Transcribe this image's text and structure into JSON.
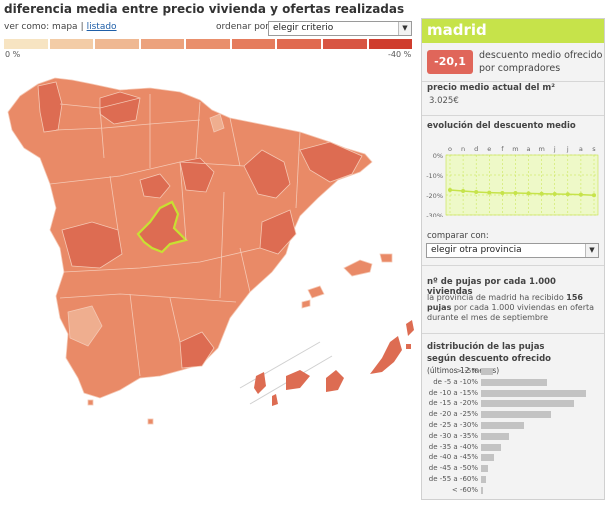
{
  "page": {
    "title": "diferencia media entre precio vivienda y ofertas realizadas"
  },
  "view": {
    "label": "ver como: mapa",
    "separator": "|",
    "list_link": "listado",
    "order_label": "ordenar por:",
    "order_value": "elegir criterio"
  },
  "scale": {
    "min_label": "0 %",
    "max_label": "-40 %",
    "colors": [
      "#f7e4c2",
      "#f3cca6",
      "#efb892",
      "#eca27d",
      "#e98f6c",
      "#e57c5d",
      "#e06a50",
      "#d85543",
      "#cf3d2e"
    ]
  },
  "map": {
    "land_color": "#e98a67",
    "dark_color": "#dd6c52",
    "light_color": "#efae8f",
    "border_color": "#f5c8b4",
    "highlight_color": "#c8e032",
    "selected": "madrid"
  },
  "panel": {
    "province": "madrid",
    "discount_value": "-20,1 %",
    "discount_label": "descuento medio ofrecido por compradores",
    "price_label": "precio medio actual del m²",
    "price_value": "3.025€",
    "evolution_label": "evolución del descuento medio",
    "months": [
      "o",
      "n",
      "d",
      "e",
      "f",
      "m",
      "a",
      "m",
      "j",
      "j",
      "a",
      "s"
    ],
    "y_ticks": [
      "0%",
      "-10%",
      "-20%",
      "-30%"
    ],
    "evolution_series": [
      -17.5,
      -18.0,
      -18.5,
      -18.8,
      -19.0,
      -19.0,
      -19.2,
      -19.4,
      -19.5,
      -19.6,
      -19.8,
      -20.1
    ],
    "compare_label": "comparar con:",
    "compare_value": "elegir otra provincia",
    "bids_label": "nº de pujas por cada 1.000 viviendas",
    "bids_text_1": "la provincia de madrid ha recibido",
    "bids_value": "156 pujas",
    "bids_text_2": "por cada 1.000 viviendas en oferta durante el mes de septiembre",
    "dist_label": "distribución de las pujas según descuento ofrecido",
    "dist_sub": "(últimos 12 meses)",
    "dist_rows": [
      {
        "label": "> -5%",
        "value": 12
      },
      {
        "label": "de -5 a -10%",
        "value": 66
      },
      {
        "label": "de -10 a -15%",
        "value": 105
      },
      {
        "label": "de -15 a -20%",
        "value": 93
      },
      {
        "label": "de -20 a -25%",
        "value": 70
      },
      {
        "label": "de -25 a -30%",
        "value": 43
      },
      {
        "label": "de -30 a -35%",
        "value": 28
      },
      {
        "label": "de -35 a -40%",
        "value": 20
      },
      {
        "label": "de -40 a -45%",
        "value": 13
      },
      {
        "label": "de -45 a -50%",
        "value": 7
      },
      {
        "label": "de -55 a -60%",
        "value": 5
      },
      {
        "label": "< -60%",
        "value": 2
      }
    ]
  }
}
